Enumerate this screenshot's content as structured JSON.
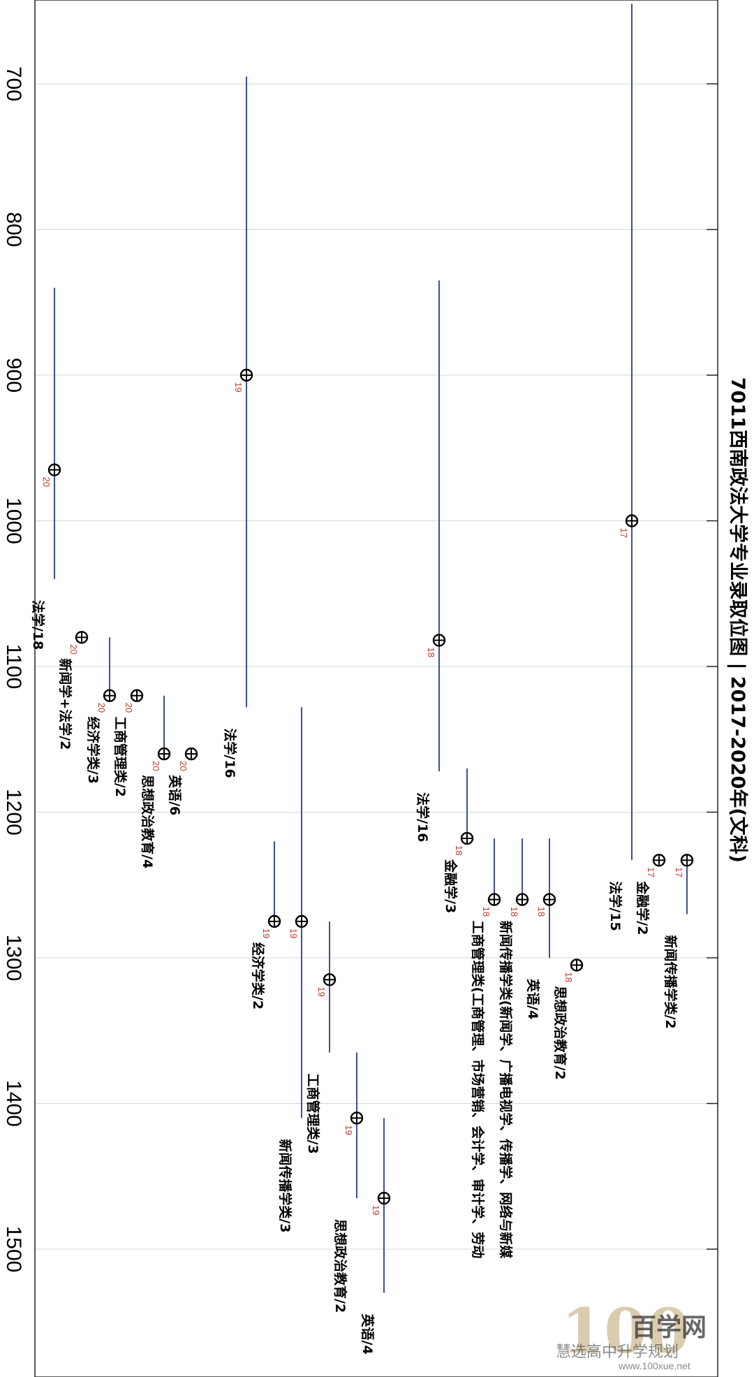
{
  "chart_data": {
    "type": "range",
    "title": "7011西南政法大学专业录取位图 | 2017-2020年(文科)",
    "orientation": "rotated-90-clockwise",
    "value_axis": {
      "ticks": [
        700,
        800,
        900,
        1000,
        1100,
        1200,
        1300,
        1400,
        1500
      ],
      "range": [
        640,
        1590
      ],
      "grid": true
    },
    "series": [
      {
        "label": "法学/18",
        "year": "20",
        "min": 840,
        "max": 1040,
        "mid": 965
      },
      {
        "label": "新闻学+法学/2",
        "year": "20",
        "min": 1080,
        "max": 1080,
        "mid": 1080
      },
      {
        "label": "经济学类/3",
        "year": "20",
        "min": 1080,
        "max": 1120,
        "mid": 1120
      },
      {
        "label": "工商管理类/2",
        "year": "20",
        "min": 1120,
        "max": 1120,
        "mid": 1120
      },
      {
        "label": "思想政治教育/4",
        "year": "20",
        "min": 1120,
        "max": 1160,
        "mid": 1160
      },
      {
        "label": "英语/6",
        "year": "20",
        "min": 1160,
        "max": 1160,
        "mid": 1160
      },
      {
        "label": "法学/16",
        "year": "19",
        "min": 695,
        "max": 1128,
        "mid": 900
      },
      {
        "label": "经济学类/2",
        "year": "19",
        "min": 1220,
        "max": 1275,
        "mid": 1275
      },
      {
        "label": "新闻传播学类/3",
        "year": "19",
        "min": 1128,
        "max": 1410,
        "mid": 1275
      },
      {
        "label": "工商管理类/3",
        "year": "19",
        "min": 1275,
        "max": 1365,
        "mid": 1315
      },
      {
        "label": "思想政治教育/2",
        "year": "19",
        "min": 1365,
        "max": 1465,
        "mid": 1410
      },
      {
        "label": "英语/4",
        "year": "19",
        "min": 1410,
        "max": 1530,
        "mid": 1465
      },
      {
        "label": "法学/16",
        "year": "18",
        "min": 835,
        "max": 1172,
        "mid": 1082
      },
      {
        "label": "金融学/3",
        "year": "18",
        "min": 1170,
        "max": 1218,
        "mid": 1218
      },
      {
        "label": "工商管理类(工商管理、市场营销、会计学、审计学、劳动",
        "year": "18",
        "min": 1218,
        "max": 1260,
        "mid": 1260
      },
      {
        "label": "新闻传播学类(新闻学、广播电视学、传播学、网络与新媒",
        "year": "18",
        "min": 1218,
        "max": 1260,
        "mid": 1260
      },
      {
        "label": "英语/4",
        "year": "18",
        "min": 1218,
        "max": 1300,
        "mid": 1260
      },
      {
        "label": "思想政治教育/2",
        "year": "18",
        "min": 1305,
        "max": 1305,
        "mid": 1305
      },
      {
        "label": "法学/15",
        "year": "17",
        "min": 645,
        "max": 1233,
        "mid": 1000
      },
      {
        "label": "金融学/2",
        "year": "17",
        "min": 1233,
        "max": 1233,
        "mid": 1233
      },
      {
        "label": "新闻传播学类/2",
        "year": "17",
        "min": 1233,
        "max": 1270,
        "mid": 1233
      }
    ]
  },
  "watermark": {
    "logo_number": "100",
    "name": "百学网",
    "subtitle": "慧选高中升学规划",
    "url": "www.100xue.net"
  }
}
